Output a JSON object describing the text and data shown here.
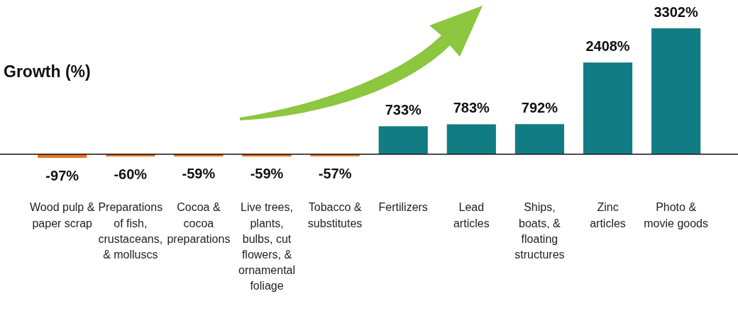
{
  "chart_data": {
    "type": "bar",
    "title": "Growth (%)",
    "categories": [
      "Wood pulp & paper scrap",
      "Preparations of fish, crustaceans, & molluscs",
      "Cocoa & cocoa preparations",
      "Live trees, plants, bulbs, cut flowers, & ornamental foliage",
      "Tobacco & substitutes",
      "Fertilizers",
      "Lead articles",
      "Ships, boats, & floating structures",
      "Zinc articles",
      "Photo & movie goods"
    ],
    "values": [
      -97,
      -60,
      -59,
      -59,
      -57,
      733,
      783,
      792,
      2408,
      3302
    ],
    "colors": [
      "#e87722",
      "#e87722",
      "#e87722",
      "#e87722",
      "#e87722",
      "#127c84",
      "#127c84",
      "#127c84",
      "#127c84",
      "#127c84"
    ],
    "value_labels": [
      "-97%",
      "-60%",
      "-59%",
      "-59%",
      "-57%",
      "733%",
      "783%",
      "792%",
      "2408%",
      "3302%"
    ],
    "legend": false,
    "grid": false
  }
}
